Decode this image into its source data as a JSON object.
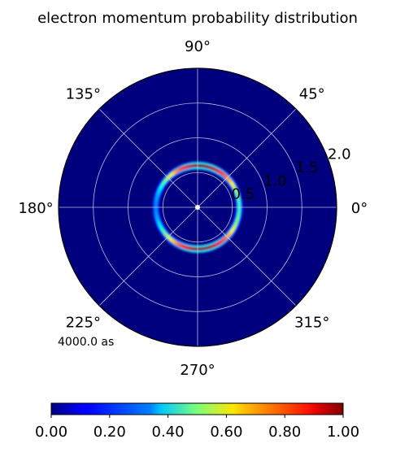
{
  "chart_data": {
    "type": "heatmap",
    "projection": "polar",
    "title": "electron momentum probability distribution",
    "angle_tick_labels": [
      "0°",
      "45°",
      "90°",
      "135°",
      "180°",
      "225°",
      "270°",
      "315°"
    ],
    "radial_tick_labels": [
      "0.5",
      "1.0",
      "1.5",
      "2.0"
    ],
    "radial_ticks": [
      0.5,
      1.0,
      1.5,
      2.0
    ],
    "rmax": 2.0,
    "grid": true,
    "colormap": "jet",
    "colorbar": {
      "orientation": "horizontal",
      "range": [
        0.0,
        1.0
      ],
      "tick_labels": [
        "0.00",
        "0.20",
        "0.40",
        "0.60",
        "0.80",
        "1.00"
      ],
      "tick_values": [
        0.0,
        0.2,
        0.4,
        0.6,
        0.8,
        1.0
      ]
    },
    "ring": {
      "radius": 0.6,
      "width": 0.05,
      "peak_value": 1.0,
      "peak_angles_deg": [
        90,
        270
      ],
      "min_angle_deg": 180,
      "min_value": 0.35
    },
    "annotation": "4000.0 as"
  },
  "colors": {
    "background": "#00007f",
    "grid": "#d8d8ee",
    "annotation": "#f08080"
  }
}
